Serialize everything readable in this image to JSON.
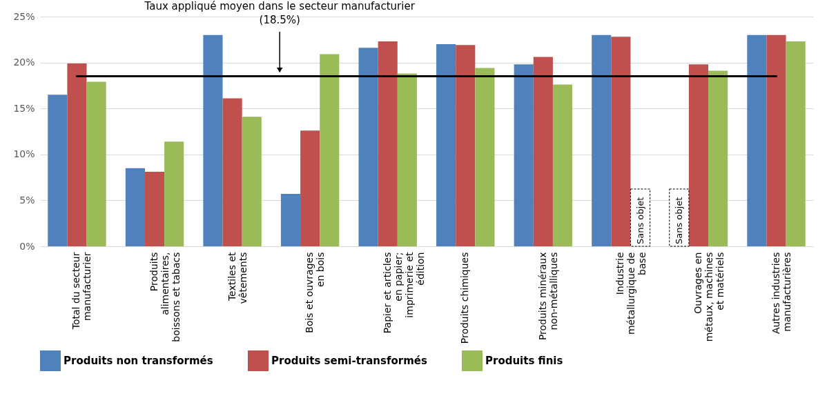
{
  "chart_data": {
    "type": "bar",
    "categories": [
      "Total du secteur manufacturier",
      "Produits alimentaires, boissons et tabacs",
      "Textiles et vêtements",
      "Bois et ouvrages en bois",
      "Papier et articles en papier; imprimerie et édition",
      "Produits chimiques",
      "Produits minéraux non-métalliques",
      "Industrie métallurgique de base",
      "Ouvrages en métaux, machines et matériels",
      "Autres industries manufacturières"
    ],
    "series": [
      {
        "name": "Produits non transformés",
        "color": "#4f81bd",
        "values": [
          16.5,
          8.5,
          23.0,
          5.7,
          21.6,
          22.0,
          19.8,
          23.0,
          null,
          23.0
        ]
      },
      {
        "name": "Produits semi-transformés",
        "color": "#c0504d",
        "values": [
          19.9,
          8.1,
          16.1,
          12.6,
          22.3,
          21.9,
          20.6,
          22.8,
          19.8,
          23.0
        ]
      },
      {
        "name": "Produits finis",
        "color": "#9bbb59",
        "values": [
          17.9,
          11.4,
          14.1,
          20.9,
          18.8,
          19.4,
          17.6,
          null,
          19.1,
          22.3
        ]
      }
    ],
    "ylim": [
      0,
      25
    ],
    "yticks": [
      {
        "value": 0,
        "label": "0%"
      },
      {
        "value": 5,
        "label": "5%"
      },
      {
        "value": 10,
        "label": "10%"
      },
      {
        "value": 15,
        "label": "15%"
      },
      {
        "value": 20,
        "label": "20%"
      },
      {
        "value": 25,
        "label": "25%"
      }
    ],
    "ref_lines": [
      {
        "axis": "y",
        "value": 18.5,
        "label": "Taux appliqué moyen dans le secteur manufacturier (18.5%)",
        "color": "#000000"
      }
    ],
    "annotations": [
      {
        "text": "Sans objet",
        "x": "Industrie métallurgique de base"
      },
      {
        "text": "Sans objet",
        "x": "Ouvrages en métaux, machines et matériels"
      }
    ],
    "grid": "y",
    "legend": "bottom"
  }
}
